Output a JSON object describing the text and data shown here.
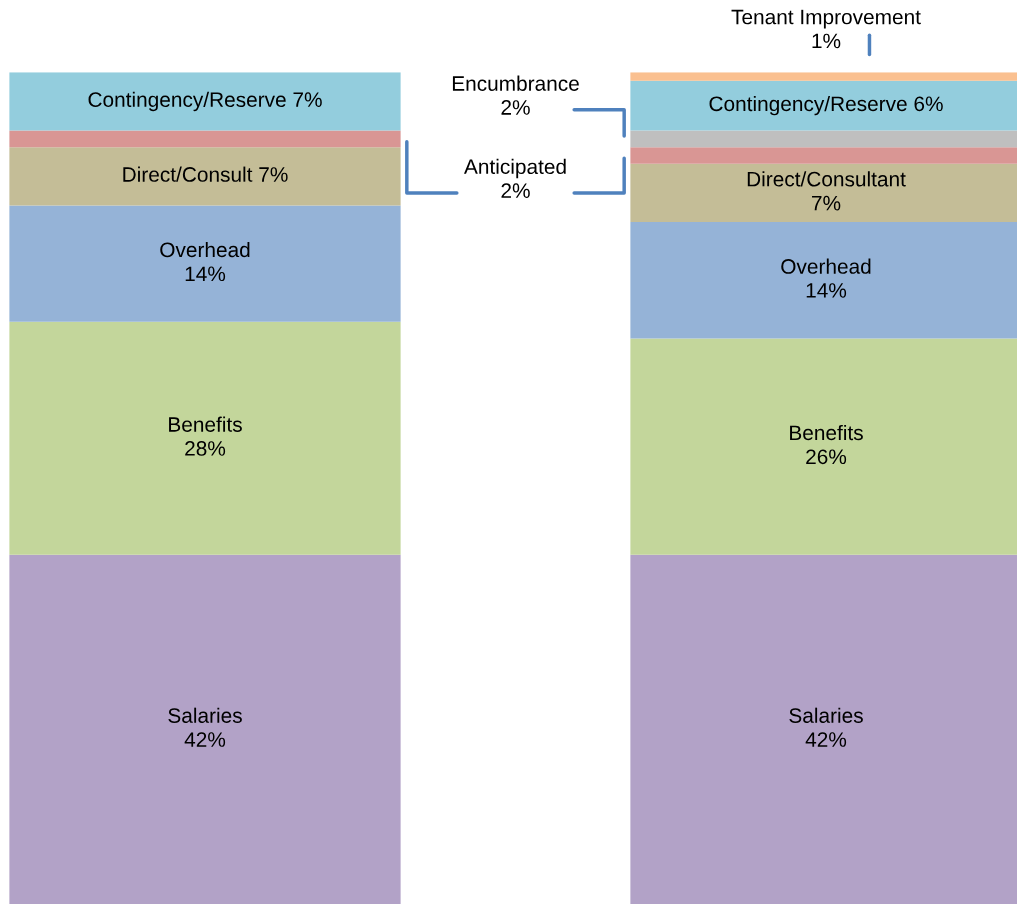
{
  "chart_data": {
    "type": "bar",
    "stacked": true,
    "categories": [
      null,
      null
    ],
    "grid": false,
    "legend": false,
    "series": [
      {
        "color": "#b2a2c7",
        "values": [
          42,
          42
        ],
        "value_labels": [
          "Salaries\n42%",
          "Salaries\n42%"
        ]
      },
      {
        "color": "#c3d69b",
        "values": [
          28,
          26
        ],
        "value_labels": [
          "Benefits\n28%",
          "Benefits\n26%"
        ]
      },
      {
        "color": "#95b3d7",
        "values": [
          14,
          14
        ],
        "value_labels": [
          "Overhead\n14%",
          "Overhead\n14%"
        ]
      },
      {
        "color": "#c4bd97",
        "values": [
          7,
          7
        ],
        "value_labels": [
          "Direct/Consult 7%",
          "Direct/Consultant\n7%"
        ]
      },
      {
        "color": "#d99694",
        "values": [
          2,
          2
        ],
        "value_labels": [
          null,
          "Anticipated\n2%"
        ]
      },
      {
        "color": "#bfbfbf",
        "values": [
          0,
          2
        ],
        "value_labels": [
          null,
          "Encumbrance\n2%"
        ]
      },
      {
        "color": "#93cddd",
        "values": [
          7,
          6
        ],
        "value_labels": [
          "Contingency/Reserve 7%",
          "Contingency/Reserve 6%"
        ]
      },
      {
        "color": "#fac090",
        "values": [
          0,
          1
        ],
        "value_labels": [
          null,
          "Tenant Improvement\n1%"
        ]
      }
    ]
  }
}
